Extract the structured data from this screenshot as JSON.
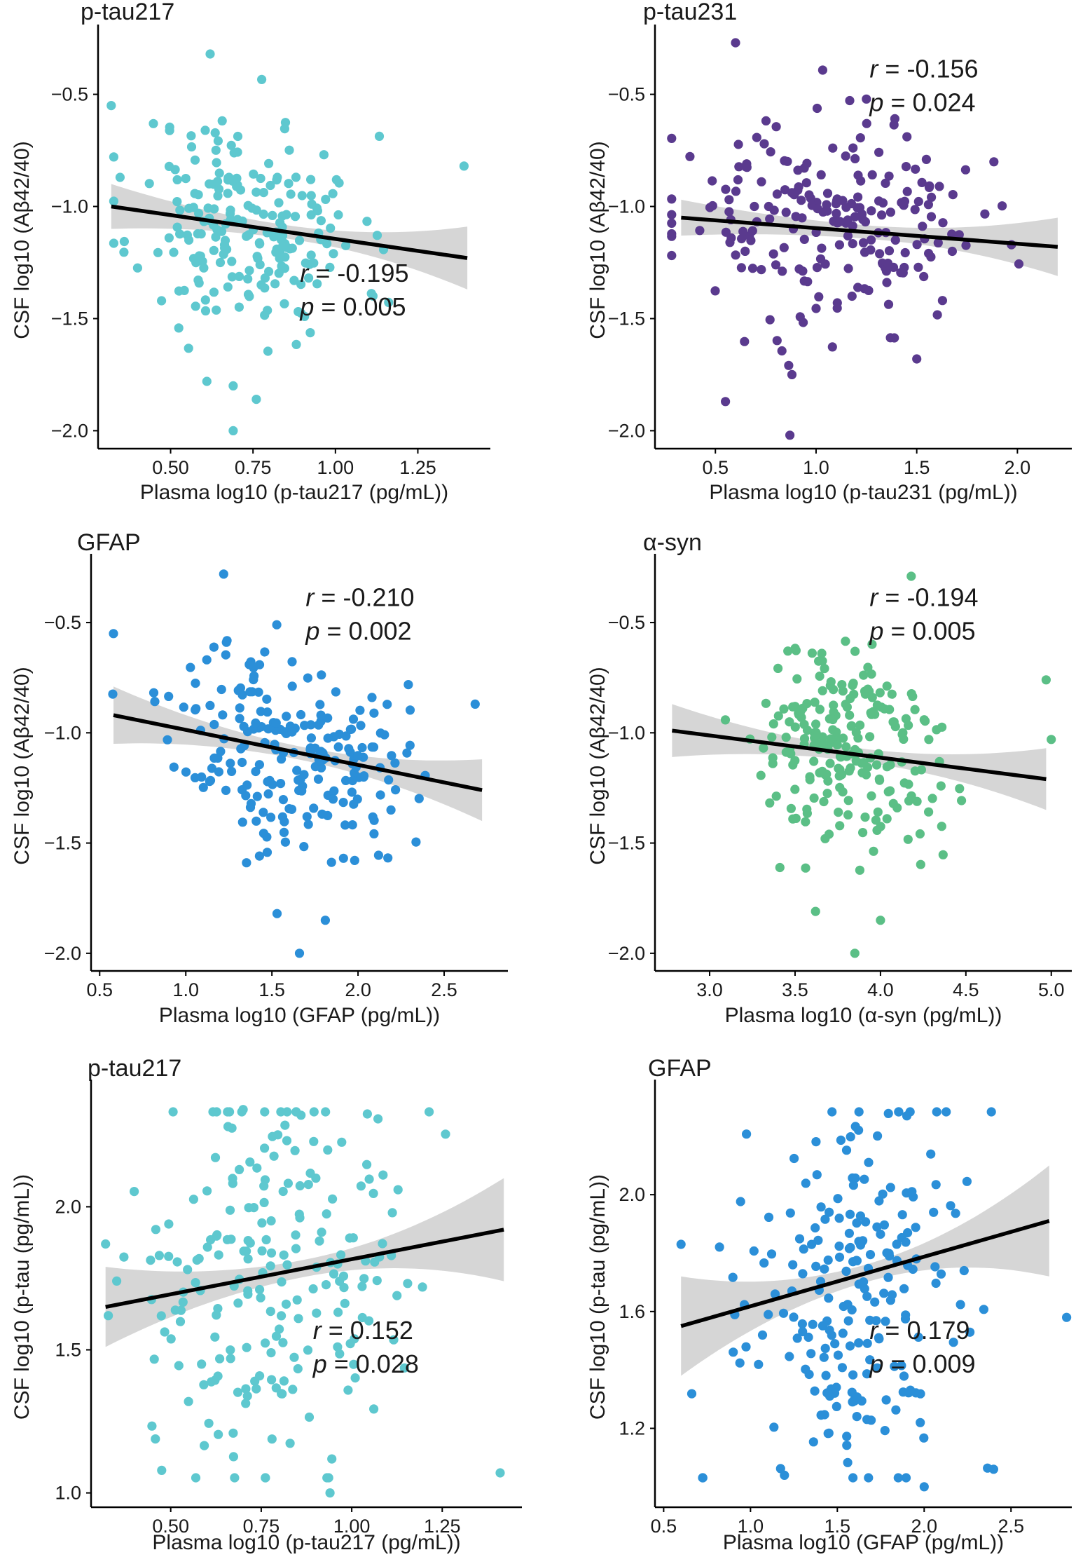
{
  "chart_data": [
    {
      "type": "scatter",
      "title": "p-tau217",
      "xlabel": "Plasma log10 (p-tau217 (pg/mL))",
      "ylabel": "CSF log10 (Aβ42/40)",
      "xlim": [
        0.28,
        1.47
      ],
      "ylim": [
        -2.08,
        -0.22
      ],
      "xticks": [
        0.5,
        0.75,
        1.0,
        1.25
      ],
      "xtick_labels": [
        "0.50",
        "0.75",
        "1.00",
        "1.25"
      ],
      "yticks": [
        -2.0,
        -1.5,
        -1.0,
        -0.5
      ],
      "ytick_labels": [
        "−2.0",
        "−1.5",
        "−1.0",
        "−0.5"
      ],
      "color": "#5ec8cf",
      "stats": {
        "r_label": "r",
        "r_value": " = -0.195",
        "p_label": "p",
        "p_value": " = 0.005",
        "position": "bottom-right"
      },
      "regression": {
        "x0": 0.32,
        "y0": -1.0,
        "x1": 1.4,
        "y1": -1.23,
        "ci0": 0.1,
        "cimid": 0.03,
        "ci1": 0.14
      },
      "points_seed": 11,
      "points_count": 215,
      "x_center": 0.74,
      "x_sd": 0.17,
      "y_center": -1.08,
      "y_sd": 0.24,
      "extra_points": [
        [
          0.32,
          -0.55
        ],
        [
          0.62,
          -0.32
        ],
        [
          1.39,
          -0.82
        ],
        [
          0.69,
          -2.0
        ],
        [
          0.76,
          -1.86
        ],
        [
          0.69,
          -1.8
        ],
        [
          0.61,
          -1.78
        ]
      ]
    },
    {
      "type": "scatter",
      "title": "p-tau231",
      "xlabel": "Plasma log10 (p-tau231 (pg/mL))",
      "ylabel": "CSF log10 (Aβ42/40)",
      "xlim": [
        0.2,
        2.27
      ],
      "ylim": [
        -2.08,
        -0.22
      ],
      "xticks": [
        0.5,
        1.0,
        1.5,
        2.0
      ],
      "xtick_labels": [
        "0.5",
        "1.0",
        "1.5",
        "2.0"
      ],
      "yticks": [
        -2.0,
        -1.5,
        -1.0,
        -0.5
      ],
      "ytick_labels": [
        "−2.0",
        "−1.5",
        "−1.0",
        "−0.5"
      ],
      "color": "#5a3a8e",
      "stats": {
        "r_label": "r",
        "r_value": " = -0.156",
        "p_label": "p",
        "p_value": " = 0.024",
        "position": "top-right"
      },
      "regression": {
        "x0": 0.33,
        "y0": -1.05,
        "x1": 2.2,
        "y1": -1.18,
        "ci0": 0.08,
        "cimid": 0.03,
        "ci1": 0.13
      },
      "points_seed": 23,
      "points_count": 215,
      "x_center": 1.05,
      "x_sd": 0.38,
      "y_center": -1.07,
      "y_sd": 0.22,
      "extra_points": [
        [
          0.6,
          -0.27
        ],
        [
          0.87,
          -2.02
        ],
        [
          0.55,
          -1.87
        ],
        [
          0.88,
          -1.75
        ],
        [
          1.5,
          -1.68
        ]
      ]
    },
    {
      "type": "scatter",
      "title": "GFAP",
      "xlabel": "Plasma log10 (GFAP (pg/mL))",
      "ylabel": "CSF log10 (Aβ42/40)",
      "xlim": [
        0.45,
        2.87
      ],
      "ylim": [
        -2.08,
        -0.22
      ],
      "xticks": [
        0.5,
        1.0,
        1.5,
        2.0,
        2.5
      ],
      "xtick_labels": [
        "0.5",
        "1.0",
        "1.5",
        "2.0",
        "2.5"
      ],
      "yticks": [
        -2.0,
        -1.5,
        -1.0,
        -0.5
      ],
      "ytick_labels": [
        "−2.0",
        "−1.5",
        "−1.0",
        "−0.5"
      ],
      "color": "#2b8fd8",
      "stats": {
        "r_label": "r",
        "r_value": " = -0.210",
        "p_label": "p",
        "p_value": " = 0.002",
        "position": "top-right"
      },
      "regression": {
        "x0": 0.58,
        "y0": -0.92,
        "x1": 2.72,
        "y1": -1.26,
        "ci0": 0.13,
        "cimid": 0.03,
        "ci1": 0.14
      },
      "points_seed": 37,
      "points_count": 215,
      "x_center": 1.6,
      "x_sd": 0.33,
      "y_center": -1.08,
      "y_sd": 0.23,
      "extra_points": [
        [
          0.58,
          -0.55
        ],
        [
          1.22,
          -0.28
        ],
        [
          2.68,
          -0.87
        ],
        [
          1.66,
          -2.0
        ],
        [
          1.81,
          -1.85
        ],
        [
          1.53,
          -1.82
        ]
      ]
    },
    {
      "type": "scatter",
      "title": "α-syn",
      "xlabel": "Plasma log10 (α-syn (pg/mL))",
      "ylabel": "CSF log10 (Aβ42/40)",
      "xlim": [
        2.68,
        5.12
      ],
      "ylim": [
        -2.08,
        -0.22
      ],
      "xticks": [
        3.0,
        3.5,
        4.0,
        4.5,
        5.0
      ],
      "xtick_labels": [
        "3.0",
        "3.5",
        "4.0",
        "4.5",
        "5.0"
      ],
      "yticks": [
        -2.0,
        -1.5,
        -1.0,
        -0.5
      ],
      "ytick_labels": [
        "−2.0",
        "−1.5",
        "−1.0",
        "−0.5"
      ],
      "color": "#5bbf86",
      "stats": {
        "r_label": "r",
        "r_value": " = -0.194",
        "p_label": "p",
        "p_value": " = 0.005",
        "position": "top-right"
      },
      "regression": {
        "x0": 2.78,
        "y0": -0.99,
        "x1": 4.97,
        "y1": -1.21,
        "ci0": 0.12,
        "cimid": 0.03,
        "ci1": 0.14
      },
      "points_seed": 51,
      "points_count": 215,
      "x_center": 3.8,
      "x_sd": 0.28,
      "y_center": -1.08,
      "y_sd": 0.23,
      "extra_points": [
        [
          4.18,
          -0.29
        ],
        [
          4.97,
          -0.76
        ],
        [
          5.0,
          -1.03
        ],
        [
          3.85,
          -2.0
        ],
        [
          4.0,
          -1.85
        ],
        [
          3.62,
          -1.81
        ]
      ]
    },
    {
      "type": "scatter",
      "title": "p-tau217",
      "xlabel": "Plasma log10 (p-tau217 (pg/mL))",
      "ylabel": "CSF log10 (p-tau (pg/mL))",
      "xlim": [
        0.28,
        1.47
      ],
      "ylim": [
        0.95,
        2.42
      ],
      "xticks": [
        0.5,
        0.75,
        1.0,
        1.25
      ],
      "xtick_labels": [
        "0.50",
        "0.75",
        "1.00",
        "1.25"
      ],
      "yticks": [
        1.0,
        1.5,
        2.0
      ],
      "ytick_labels": [
        "1.0",
        "1.5",
        "2.0"
      ],
      "color": "#5ec8cf",
      "stats": {
        "r_label": "r",
        "r_value": " = 0.152",
        "p_label": "p",
        "p_value": " = 0.028",
        "position": "bottom-right"
      },
      "regression": {
        "x0": 0.32,
        "y0": 1.65,
        "x1": 1.42,
        "y1": 1.92,
        "ci0": 0.14,
        "cimid": 0.03,
        "ci1": 0.18
      },
      "points_seed": 67,
      "points_count": 215,
      "x_center": 0.76,
      "x_sd": 0.18,
      "y_center": 1.68,
      "y_sd": 0.36,
      "extra_points": [
        [
          0.32,
          1.87
        ],
        [
          1.41,
          1.07
        ],
        [
          0.94,
          1.0
        ],
        [
          0.7,
          2.34
        ],
        [
          0.86,
          2.32
        ]
      ]
    },
    {
      "type": "scatter",
      "title": "GFAP",
      "xlabel": "Plasma log10 (GFAP (pg/mL))",
      "ylabel": "CSF log10 (p-tau (pg/mL))",
      "xlim": [
        0.45,
        2.85
      ],
      "ylim": [
        0.93,
        2.37
      ],
      "xticks": [
        0.5,
        1.0,
        1.5,
        2.0,
        2.5
      ],
      "xtick_labels": [
        "0.5",
        "1.0",
        "1.5",
        "2.0",
        "2.5"
      ],
      "yticks": [
        1.2,
        1.6,
        2.0
      ],
      "ytick_labels": [
        "1.2",
        "1.6",
        "2.0"
      ],
      "color": "#2b8fd8",
      "stats": {
        "r_label": "r",
        "r_value": " = 0.179",
        "p_label": "p",
        "p_value": " = 0.009",
        "position": "bottom-right"
      },
      "regression": {
        "x0": 0.6,
        "y0": 1.55,
        "x1": 2.72,
        "y1": 1.91,
        "ci0": 0.17,
        "cimid": 0.03,
        "ci1": 0.19
      },
      "points_seed": 83,
      "points_count": 215,
      "x_center": 1.58,
      "x_sd": 0.33,
      "y_center": 1.65,
      "y_sd": 0.34,
      "extra_points": [
        [
          0.6,
          1.83
        ],
        [
          2.82,
          1.58
        ],
        [
          2.0,
          1.0
        ],
        [
          2.4,
          1.06
        ],
        [
          1.9,
          2.27
        ]
      ]
    }
  ]
}
